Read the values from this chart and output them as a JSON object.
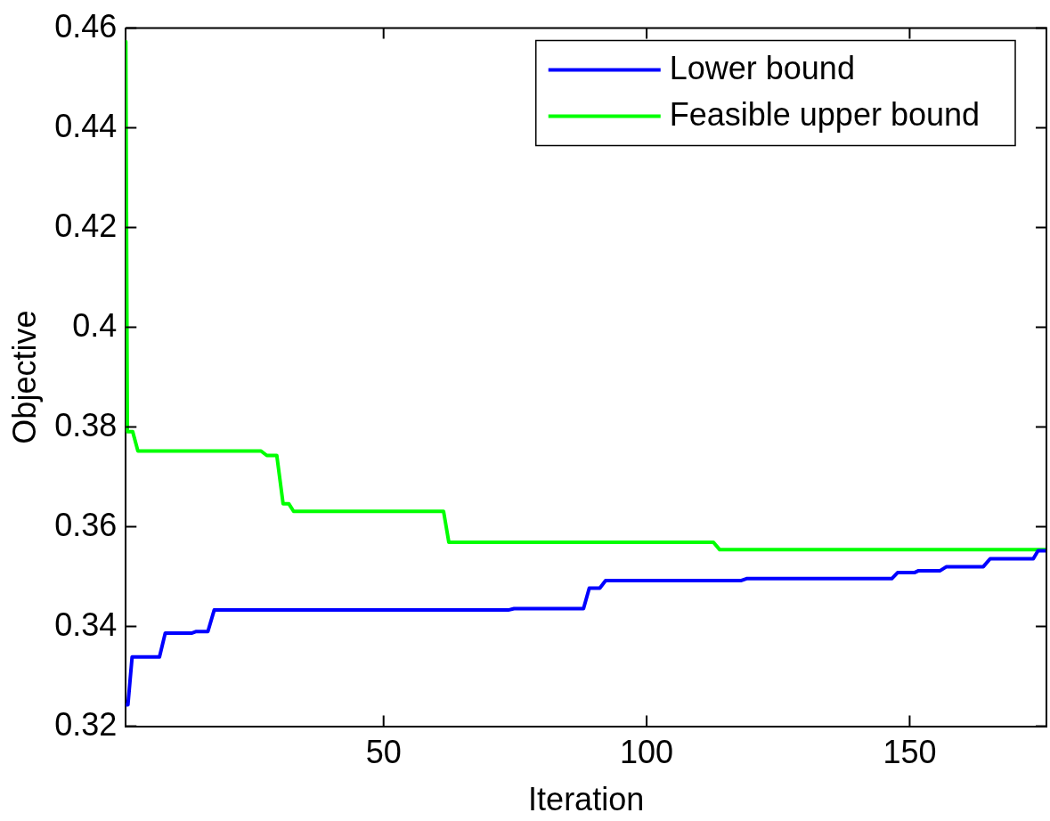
{
  "chart_data": {
    "type": "line",
    "xlabel": "Iteration",
    "ylabel": "Objective",
    "xlim": [
      1,
      176
    ],
    "ylim": [
      0.32,
      0.46
    ],
    "xticks": [
      50,
      100,
      150
    ],
    "yticks": [
      0.32,
      0.34,
      0.36,
      0.38,
      0.4,
      0.42,
      0.44,
      0.46
    ],
    "grid": false,
    "legend": "top right",
    "marker": "none",
    "line_style": "solid",
    "series": [
      {
        "name": "Lower bound",
        "color": "#0000ff",
        "x": [
          1,
          1.4,
          2.2,
          7.4,
          8.5,
          13.6,
          14.4,
          16.6,
          17.8,
          73.7,
          74.8,
          88,
          89.1,
          91.1,
          92.2,
          117.9,
          119,
          146.6,
          147.7,
          150.9,
          151.7,
          155.8,
          157,
          164,
          165.3,
          173.5,
          174.4,
          176
        ],
        "values": [
          0.3243,
          0.3243,
          0.3339,
          0.3339,
          0.3387,
          0.3387,
          0.339,
          0.339,
          0.3433,
          0.3433,
          0.3436,
          0.3436,
          0.3477,
          0.3477,
          0.3492,
          0.3492,
          0.3496,
          0.3496,
          0.3508,
          0.3508,
          0.3512,
          0.3512,
          0.352,
          0.352,
          0.3536,
          0.3536,
          0.3552,
          0.3552
        ]
      },
      {
        "name": "Feasible upper bound",
        "color": "#00ff00",
        "x": [
          1,
          1.3,
          2.3,
          3.3,
          26.7,
          27.8,
          29.7,
          30.9,
          32,
          32.9,
          61.4,
          62.4,
          112.7,
          113.9,
          176
        ],
        "values": [
          0.4573,
          0.3791,
          0.3791,
          0.3752,
          0.3752,
          0.3743,
          0.3743,
          0.3646,
          0.3646,
          0.3631,
          0.3631,
          0.3569,
          0.3569,
          0.3554,
          0.3554
        ]
      }
    ]
  }
}
